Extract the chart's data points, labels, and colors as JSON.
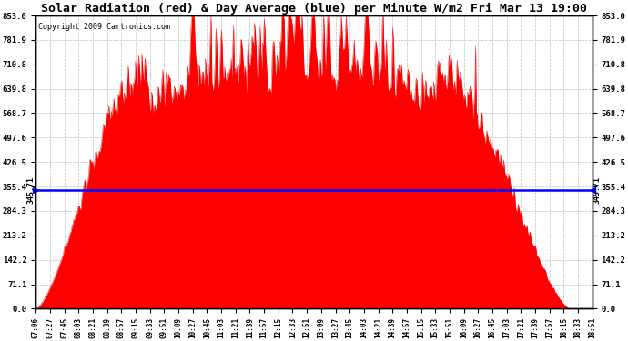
{
  "title": "Solar Radiation (red) & Day Average (blue) per Minute W/m2 Fri Mar 13 19:00",
  "copyright": "Copyright 2009 Cartronics.com",
  "ymin": 0.0,
  "ymax": 853.0,
  "yticks": [
    0.0,
    71.1,
    142.2,
    213.2,
    284.3,
    355.4,
    426.5,
    497.6,
    568.7,
    639.8,
    710.8,
    781.9,
    853.0
  ],
  "day_average": 345.71,
  "fill_color": "red",
  "line_color": "blue",
  "background_color": "white",
  "grid_color": "#aaaaaa",
  "xtick_labels": [
    "07:06",
    "07:27",
    "07:45",
    "08:03",
    "08:21",
    "08:39",
    "08:57",
    "09:15",
    "09:33",
    "09:51",
    "10:09",
    "10:27",
    "10:45",
    "11:03",
    "11:21",
    "11:39",
    "11:57",
    "12:15",
    "12:33",
    "12:51",
    "13:09",
    "13:27",
    "13:45",
    "14:03",
    "14:21",
    "14:39",
    "14:57",
    "15:15",
    "15:33",
    "15:51",
    "16:09",
    "16:27",
    "16:45",
    "17:03",
    "17:21",
    "17:39",
    "17:57",
    "18:15",
    "18:33",
    "18:51"
  ],
  "n_points": 693,
  "figwidth": 6.9,
  "figheight": 3.75,
  "dpi": 100
}
